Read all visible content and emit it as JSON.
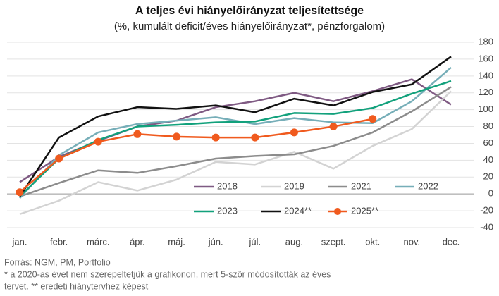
{
  "chart_data": {
    "type": "line",
    "title": "A teljes évi hiányelőirányzat teljesítettsége",
    "subtitle": "(%, kumulált deficit/éves hiányelőirányzat*, pénzforgalom)",
    "categories": [
      "jan.",
      "febr.",
      "márc.",
      "ápr.",
      "máj.",
      "jún.",
      "júl.",
      "aug.",
      "szept.",
      "okt.",
      "nov.",
      "dec."
    ],
    "series": [
      {
        "name": "2018",
        "color": "#7f5a83",
        "values": [
          14,
          44,
          63,
          80,
          87,
          103,
          110,
          120,
          110,
          122,
          136,
          106
        ]
      },
      {
        "name": "2019",
        "color": "#d3d3d3",
        "values": [
          -24,
          -8,
          14,
          4,
          17,
          38,
          35,
          50,
          30,
          57,
          77,
          122
        ]
      },
      {
        "name": "2021",
        "color": "#8c8c8c",
        "values": [
          -3,
          13,
          28,
          25,
          33,
          42,
          45,
          47,
          57,
          73,
          98,
          127
        ]
      },
      {
        "name": "2022",
        "color": "#76aeb8",
        "values": [
          -5,
          46,
          73,
          83,
          87,
          91,
          83,
          90,
          85,
          84,
          110,
          150
        ]
      },
      {
        "name": "2023",
        "color": "#12a17c",
        "values": [
          -3,
          42,
          64,
          80,
          82,
          85,
          86,
          96,
          95,
          102,
          119,
          134
        ]
      },
      {
        "name": "2024**",
        "color": "#111111",
        "values": [
          -3,
          67,
          92,
          103,
          101,
          105,
          97,
          113,
          105,
          121,
          130,
          163
        ]
      },
      {
        "name": "2025**",
        "color": "#f05a1e",
        "markers": true,
        "values": [
          2,
          42,
          62,
          71,
          68,
          67,
          67,
          73,
          80,
          89,
          null,
          null
        ]
      }
    ],
    "ylim": [
      -40,
      180
    ],
    "yticks": [
      -40,
      -20,
      0,
      20,
      40,
      60,
      80,
      100,
      120,
      140,
      160,
      180
    ],
    "grid": true,
    "notes": [
      "Forrás: NGM, PM, Portfolio",
      "* a 2020-as évet nem szerepeltetjük a grafikonon, mert 5-ször módosították az éves",
      "tervet. ** eredeti hiánytervhez képest"
    ]
  }
}
